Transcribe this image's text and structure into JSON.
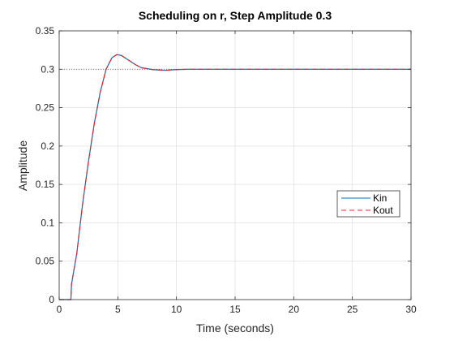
{
  "chart_data": {
    "type": "line",
    "title": "Scheduling on r, Step Amplitude 0.3",
    "xlabel": "Time (seconds)",
    "ylabel": "Amplitude",
    "xlim": [
      0,
      30
    ],
    "ylim": [
      0,
      0.35
    ],
    "xticks": [
      "0",
      "5",
      "10",
      "15",
      "20",
      "25",
      "30"
    ],
    "yticks": [
      "0",
      "0.05",
      "0.1",
      "0.15",
      "0.2",
      "0.25",
      "0.3",
      "0.35"
    ],
    "grid": true,
    "legend_position": "right-middle",
    "reference_line": {
      "y": 0.3,
      "style": "dotted"
    },
    "series": [
      {
        "name": "Kin",
        "color": "#0072BD",
        "style": "solid",
        "points": [
          [
            0,
            0
          ],
          [
            1,
            0
          ],
          [
            1.05,
            0.02
          ],
          [
            1.5,
            0.06
          ],
          [
            2,
            0.125
          ],
          [
            2.5,
            0.18
          ],
          [
            3,
            0.23
          ],
          [
            3.5,
            0.27
          ],
          [
            4,
            0.3
          ],
          [
            4.5,
            0.315
          ],
          [
            4.9,
            0.319
          ],
          [
            5.3,
            0.318
          ],
          [
            6,
            0.311
          ],
          [
            6.5,
            0.306
          ],
          [
            7,
            0.302
          ],
          [
            8,
            0.2995
          ],
          [
            9,
            0.2985
          ],
          [
            10,
            0.2995
          ],
          [
            11,
            0.3
          ],
          [
            13,
            0.3
          ],
          [
            30,
            0.3
          ]
        ]
      },
      {
        "name": "Kout",
        "color": "#E8232A",
        "style": "dashed",
        "points": [
          [
            0,
            0
          ],
          [
            1,
            0
          ],
          [
            1.05,
            0.02
          ],
          [
            1.5,
            0.06
          ],
          [
            2,
            0.125
          ],
          [
            2.5,
            0.18
          ],
          [
            3,
            0.23
          ],
          [
            3.5,
            0.27
          ],
          [
            4,
            0.3
          ],
          [
            4.5,
            0.315
          ],
          [
            4.9,
            0.319
          ],
          [
            5.3,
            0.318
          ],
          [
            6,
            0.311
          ],
          [
            6.5,
            0.306
          ],
          [
            7,
            0.302
          ],
          [
            8,
            0.2995
          ],
          [
            9,
            0.2985
          ],
          [
            10,
            0.2995
          ],
          [
            11,
            0.3
          ],
          [
            13,
            0.3
          ],
          [
            30,
            0.3
          ]
        ]
      }
    ]
  }
}
